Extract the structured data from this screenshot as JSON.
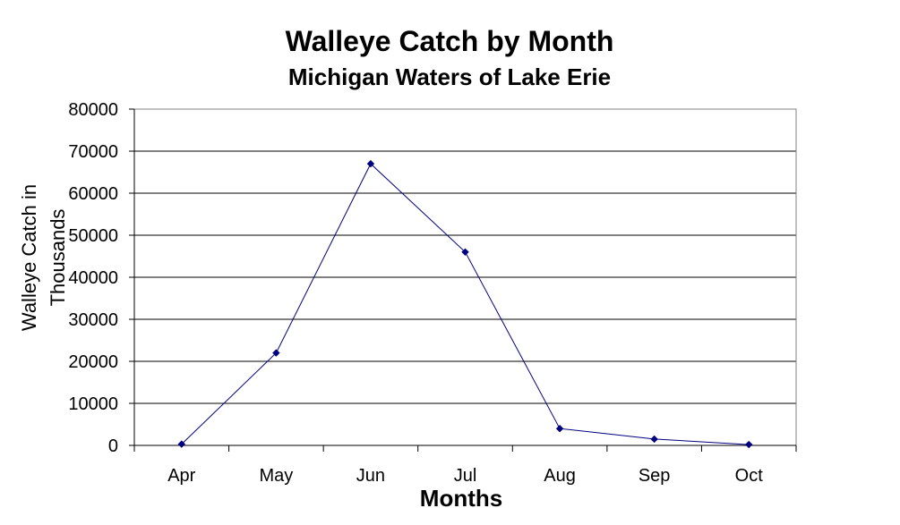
{
  "chart_data": {
    "type": "line",
    "title": "Walleye Catch by Month",
    "subtitle": "Michigan Waters of Lake Erie",
    "xlabel": "Months",
    "ylabel_lines": [
      "Walleye Catch in",
      "Thousands"
    ],
    "categories": [
      "Apr",
      "May",
      "Jun",
      "Jul",
      "Aug",
      "Sep",
      "Oct"
    ],
    "series": [
      {
        "values": [
          300,
          22000,
          67000,
          46000,
          4000,
          1500,
          200
        ],
        "color": "#000080"
      }
    ],
    "ylim": [
      0,
      80000
    ],
    "yticks": [
      0,
      10000,
      20000,
      30000,
      40000,
      50000,
      60000,
      70000,
      80000
    ],
    "grid": true,
    "legend": "none"
  }
}
